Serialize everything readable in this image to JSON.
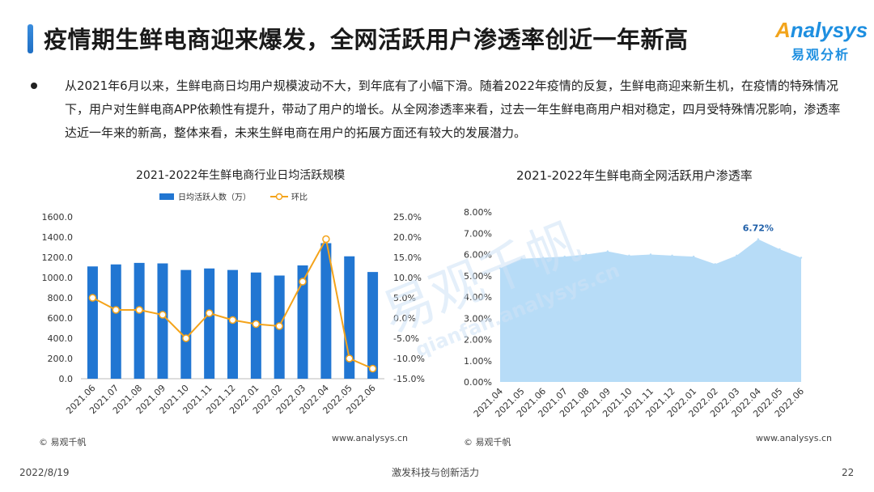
{
  "header": {
    "title": "疫情期生鲜电商迎来爆发，全网活跃用户渗透率创近一年新高",
    "logo_text": "nalysys",
    "logo_letter": "A",
    "logo_sub": "易观分析"
  },
  "body": {
    "paragraph": "从2021年6月以来，生鲜电商日均用户规模波动不大，到年底有了小幅下滑。随着2022年疫情的反复，生鲜电商迎来新生机，在疫情的特殊情况下，用户对生鲜电商APP依赖性有提升，带动了用户的增长。从全网渗透率来看，过去一年生鲜电商用户相对稳定，四月受特殊情况影响，渗透率达近一年来的新高，整体来看，未来生鲜电商在用户的拓展方面还有较大的发展潜力。"
  },
  "watermark": {
    "cn": "易观千帆",
    "en": "qianfan.analysys.cn"
  },
  "colors": {
    "accent": "#1f6fc4",
    "bar": "#2176d2",
    "line": "#f4a31a",
    "area": "#b7dcf7"
  },
  "footer": {
    "date": "2022/8/19",
    "slogan": "激发科技与创新活力",
    "page": "22",
    "left_source": "© 易观千帆",
    "left_url": "www.analysys.cn",
    "right_source": "© 易观千帆",
    "right_url": "www.analysys.cn"
  },
  "chart_data": [
    {
      "type": "bar",
      "title": "2021-2022年生鲜电商行业日均活跃规模",
      "categories": [
        "2021.06",
        "2021.07",
        "2021.08",
        "2021.09",
        "2021.10",
        "2021.11",
        "2021.12",
        "2022.01",
        "2022.02",
        "2022.03",
        "2022.04",
        "2022.05",
        "2022.06"
      ],
      "series": [
        {
          "name": "日均活跃人数（万）",
          "type": "bar",
          "axis": "left",
          "values": [
            1110,
            1130,
            1145,
            1140,
            1075,
            1090,
            1075,
            1050,
            1020,
            1120,
            1340,
            1210,
            1055
          ]
        },
        {
          "name": "环比",
          "type": "line",
          "axis": "right",
          "unit": "%",
          "values": [
            5.0,
            2.0,
            2.0,
            0.8,
            -5.0,
            1.2,
            -0.5,
            -1.5,
            -2.0,
            9.0,
            19.5,
            -10.0,
            -12.5
          ]
        }
      ],
      "ylim": [
        0,
        1600
      ],
      "yticks": [
        "1600.0",
        "1400.0",
        "1200.0",
        "1000.0",
        "800.0",
        "600.0",
        "400.0",
        "200.0",
        "0.0"
      ],
      "y2lim": [
        -15,
        25
      ],
      "y2ticks": [
        "25.0%",
        "20.0%",
        "15.0%",
        "10.0%",
        "5.0%",
        "0.0%",
        "-5.0%",
        "-10.0%",
        "-15.0%"
      ],
      "legend": "top"
    },
    {
      "type": "area",
      "title": "2021-2022年生鲜电商全网活跃用户渗透率",
      "categories": [
        "2021.04",
        "2021.05",
        "2021.06",
        "2021.07",
        "2021.08",
        "2021.09",
        "2021.10",
        "2021.11",
        "2021.12",
        "2022.01",
        "2022.02",
        "2022.03",
        "2022.04",
        "2022.05",
        "2022.06"
      ],
      "values": [
        5.35,
        5.8,
        5.85,
        5.9,
        6.0,
        6.15,
        5.95,
        6.0,
        5.95,
        5.9,
        5.55,
        5.95,
        6.72,
        6.25,
        5.85
      ],
      "unit": "%",
      "ylim": [
        0,
        8
      ],
      "yticks": [
        "8.00%",
        "7.00%",
        "6.00%",
        "5.00%",
        "4.00%",
        "3.00%",
        "2.00%",
        "1.00%",
        "0.00%"
      ],
      "annotation": {
        "label": "6.72%",
        "category": "2022.04",
        "value": 6.72
      }
    }
  ]
}
